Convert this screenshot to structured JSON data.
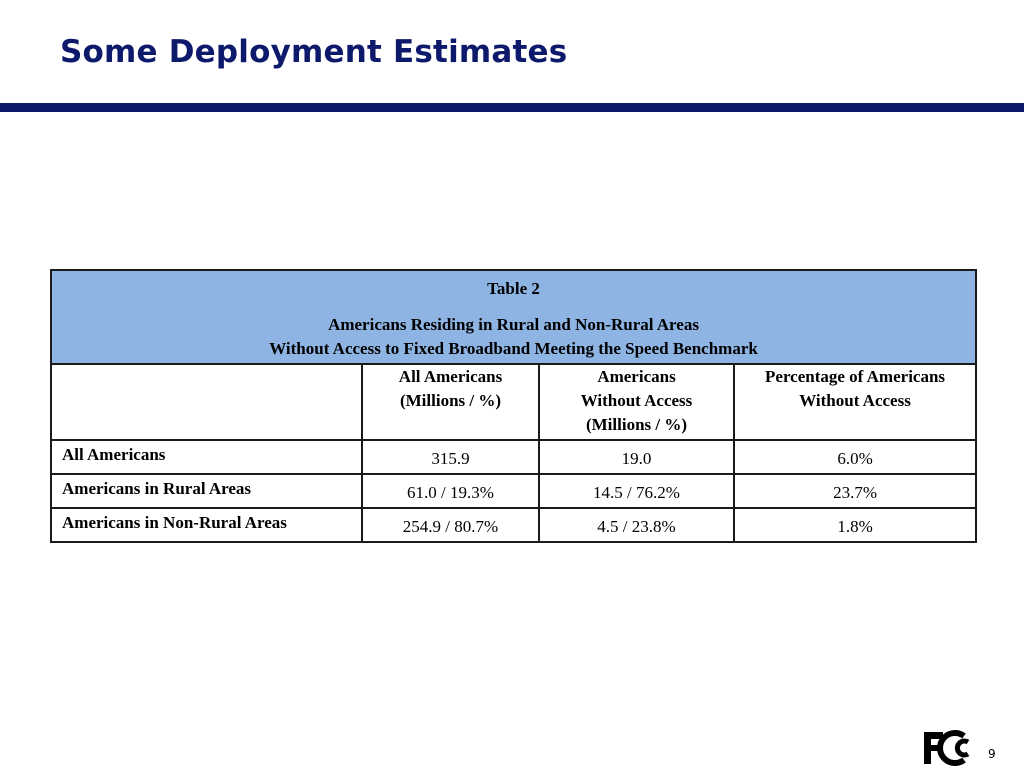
{
  "slide": {
    "title": "Some Deployment Estimates",
    "page_number": "9",
    "logo": "fcc-logo"
  },
  "table": {
    "caption": {
      "number": "Table 2",
      "line1": "Americans Residing in Rural and Non-Rural Areas",
      "line2": "Without Access to Fixed Broadband Meeting the Speed Benchmark"
    },
    "columns": [
      {
        "lines": [
          ""
        ]
      },
      {
        "lines": [
          "All Americans",
          "(Millions / %)"
        ]
      },
      {
        "lines": [
          "Americans",
          "Without Access",
          "(Millions / %)"
        ]
      },
      {
        "lines": [
          "Percentage of Americans",
          "Without Access"
        ]
      }
    ],
    "rows": [
      {
        "label": "All Americans",
        "all": "315.9",
        "without": "19.0",
        "pct": "6.0%"
      },
      {
        "label": "Americans in Rural Areas",
        "all": "61.0 / 19.3%",
        "without": "14.5 / 76.2%",
        "pct": "23.7%"
      },
      {
        "label": "Americans in Non-Rural Areas",
        "all": "254.9 / 80.7%",
        "without": "4.5 / 23.8%",
        "pct": "1.8%"
      }
    ]
  }
}
